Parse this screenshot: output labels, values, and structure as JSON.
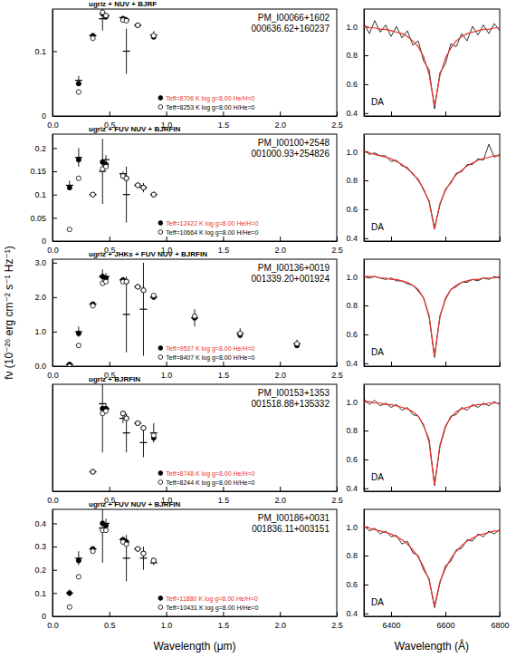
{
  "chart_data": [
    {
      "type": "scatter",
      "title": "ugriz + NUV + BJRF",
      "annotations": [
        "PM_I00066+1602",
        "000636.62+160237"
      ],
      "ylabel": "fν (10⁻²⁶ erg cm⁻² s⁻¹ Hz⁻¹)",
      "x": [
        0.23,
        0.355,
        0.44,
        0.47,
        0.62,
        0.65,
        0.75,
        0.89
      ],
      "xlim": [
        0,
        2.5
      ],
      "xticks": [
        {
          "value": 0,
          "label": "0.0"
        },
        0.5,
        {
          "value": 1,
          "label": "1.0"
        },
        1.5,
        {
          "value": 2,
          "label": "2.0"
        },
        2.5
      ],
      "ylim": [
        0,
        0.165
      ],
      "yticks": [
        0,
        0.1
      ],
      "legend": "lower center",
      "series": [
        {
          "marker": "errorbar",
          "color": "#000000",
          "values": [
            0.055,
            0.124,
            0.15,
            0.155,
            0.152,
            0.1,
            0.14,
            0.125
          ],
          "errors": [
            0.007,
            0.003,
            0.018,
            0.004,
            0.003,
            0.035,
            0.003,
            0.006
          ]
        },
        {
          "name": "Teff=8706 K  log g=8.00  He/H=0",
          "marker": "filled",
          "color": "#000000",
          "values": [
            0.05,
            0.124,
            0.158,
            0.153,
            0.15,
            0.148,
            0.14,
            0.122
          ]
        },
        {
          "name": "Teff=8253 K  log g=8.00  H/He=0",
          "marker": "open",
          "color": "#000000",
          "values": [
            0.037,
            0.12,
            0.16,
            0.155,
            0.148,
            0.147,
            0.14,
            0.124
          ]
        }
      ]
    },
    {
      "type": "line",
      "annotations": [
        "DA"
      ],
      "x": [
        6300,
        6320,
        6340,
        6360,
        6380,
        6400,
        6420,
        6440,
        6460,
        6480,
        6500,
        6520,
        6540,
        6560,
        6580,
        6600,
        6620,
        6640,
        6660,
        6680,
        6700,
        6720,
        6740,
        6760,
        6780,
        6800
      ],
      "xlim": [
        6300,
        6800
      ],
      "xticks": [
        6400,
        6600,
        6800
      ],
      "ylim": [
        0.38,
        1.12
      ],
      "yticks": [
        0.4,
        0.6,
        0.8,
        {
          "value": 1,
          "label": "1.0"
        }
      ],
      "tick_labels": "y",
      "series": [
        {
          "color": "#000000",
          "values": [
            1.02,
            0.95,
            1.04,
            0.96,
            1.01,
            0.93,
            1.0,
            0.92,
            0.97,
            0.87,
            0.9,
            0.76,
            0.7,
            0.43,
            0.68,
            0.74,
            0.88,
            0.86,
            0.95,
            0.9,
            1.0,
            0.94,
            1.01,
            0.95,
            1.02,
            0.97
          ]
        },
        {
          "color": "#e8322a",
          "values": [
            1.0,
            0.99,
            0.99,
            0.98,
            0.98,
            0.97,
            0.96,
            0.95,
            0.93,
            0.9,
            0.86,
            0.79,
            0.67,
            0.45,
            0.66,
            0.78,
            0.85,
            0.9,
            0.93,
            0.95,
            0.96,
            0.97,
            0.98,
            0.98,
            0.99,
            0.99
          ]
        }
      ]
    },
    {
      "type": "scatter",
      "title": "ugriz + FUV NUV + BJRFIN",
      "annotations": [
        "PM_I00100+2548",
        "001000.93+254826"
      ],
      "x": [
        0.15,
        0.23,
        0.355,
        0.44,
        0.47,
        0.62,
        0.65,
        0.75,
        0.8,
        0.89
      ],
      "xlim": [
        0,
        2.5
      ],
      "xticks": [
        {
          "value": 0,
          "label": "0.0"
        },
        0.5,
        {
          "value": 1,
          "label": "1.0"
        },
        1.5,
        {
          "value": 2,
          "label": "2.0"
        },
        2.5
      ],
      "ylim": [
        0,
        0.23
      ],
      "yticks": [
        0,
        0.05,
        0.1,
        0.15,
        0.2
      ],
      "legend": "lower center",
      "series": [
        {
          "marker": "errorbar",
          "color": "#000000",
          "values": [
            0.12,
            0.18,
            0.1,
            0.15,
            0.175,
            0.145,
            0.1,
            0.12,
            0.115,
            0.1
          ],
          "errors": [
            0.01,
            0.02,
            0.004,
            0.07,
            0.01,
            0.005,
            0.06,
            0.005,
            0.01,
            0.006
          ]
        },
        {
          "name": "Teff=12422 K  log g=8.00  He/H=0",
          "marker": "filled",
          "color": "#000000",
          "values": [
            0.115,
            0.175,
            0.1,
            0.17,
            0.165,
            0.14,
            0.135,
            0.12,
            0.115,
            0.1
          ]
        },
        {
          "name": "Teff=10664 K  log g=8.00  H/He=0",
          "marker": "open",
          "color": "#000000",
          "values": [
            0.025,
            0.135,
            0.1,
            0.155,
            0.16,
            0.14,
            0.135,
            0.12,
            0.115,
            0.1
          ]
        }
      ]
    },
    {
      "type": "line",
      "annotations": [
        "DA"
      ],
      "x": [
        6300,
        6320,
        6340,
        6360,
        6380,
        6400,
        6420,
        6440,
        6460,
        6480,
        6500,
        6520,
        6540,
        6560,
        6580,
        6600,
        6620,
        6640,
        6660,
        6680,
        6700,
        6720,
        6740,
        6760,
        6780,
        6800
      ],
      "xlim": [
        6300,
        6800
      ],
      "xticks": [
        6400,
        6600,
        6800
      ],
      "ylim": [
        0.38,
        1.12
      ],
      "yticks": [
        0.4,
        0.6,
        0.8,
        {
          "value": 1,
          "label": "1.0"
        }
      ],
      "tick_labels": "y",
      "series": [
        {
          "color": "#000000",
          "values": [
            1.01,
            0.98,
            0.99,
            0.97,
            0.97,
            0.93,
            0.94,
            0.9,
            0.89,
            0.84,
            0.81,
            0.73,
            0.66,
            0.47,
            0.63,
            0.74,
            0.78,
            0.85,
            0.86,
            0.91,
            0.91,
            0.95,
            0.94,
            1.05,
            0.96,
            0.98
          ]
        },
        {
          "color": "#e8322a",
          "values": [
            1.0,
            0.99,
            0.98,
            0.97,
            0.96,
            0.95,
            0.93,
            0.91,
            0.88,
            0.85,
            0.8,
            0.74,
            0.65,
            0.46,
            0.64,
            0.73,
            0.79,
            0.84,
            0.87,
            0.9,
            0.92,
            0.94,
            0.95,
            0.96,
            0.97,
            0.97
          ]
        }
      ]
    },
    {
      "type": "scatter",
      "title": "ugriz + JHKs + FUV NUV + BJRFIN",
      "annotations": [
        "PM_I00136+0019",
        "001339.20+001924"
      ],
      "x": [
        0.15,
        0.23,
        0.355,
        0.44,
        0.47,
        0.62,
        0.65,
        0.75,
        0.8,
        0.89,
        1.25,
        1.65,
        2.15
      ],
      "xlim": [
        0,
        2.5
      ],
      "xticks": [
        {
          "value": 0,
          "label": "0.0"
        },
        0.5,
        {
          "value": 1,
          "label": "1.0"
        },
        1.5,
        {
          "value": 2,
          "label": "2.0"
        },
        2.5
      ],
      "ylim": [
        0,
        3.1
      ],
      "yticks": [
        {
          "value": 0,
          "label": "0.0"
        },
        {
          "value": 1,
          "label": "1.0"
        },
        {
          "value": 2,
          "label": "2.0"
        },
        {
          "value": 3,
          "label": "3.0"
        }
      ],
      "legend": "lower center",
      "series": [
        {
          "marker": "errorbar",
          "color": "#000000",
          "values": [
            0.05,
            1.0,
            1.8,
            2.6,
            2.6,
            2.5,
            1.5,
            2.3,
            1.65,
            2.0,
            1.4,
            0.95,
            0.65
          ],
          "errors": [
            0.03,
            0.15,
            0.05,
            0.2,
            0.1,
            0.05,
            1.1,
            0.05,
            1.35,
            0.05,
            0.25,
            0.15,
            0.12
          ]
        },
        {
          "name": "Teff=9537 K  log g=8.00  He/H=0",
          "marker": "filled",
          "color": "#000000",
          "values": [
            0.05,
            0.95,
            1.8,
            2.6,
            2.55,
            2.5,
            2.45,
            2.3,
            2.2,
            2.0,
            1.4,
            0.9,
            0.6
          ]
        },
        {
          "name": "Teff=8407 K  log g=8.00  H/He=0",
          "marker": "open",
          "color": "#000000",
          "values": [
            0.0,
            0.6,
            1.75,
            2.4,
            2.45,
            2.45,
            2.45,
            2.3,
            2.2,
            2.05,
            1.45,
            0.95,
            0.65
          ]
        }
      ]
    },
    {
      "type": "line",
      "annotations": [
        "DA"
      ],
      "x": [
        6300,
        6320,
        6340,
        6360,
        6380,
        6400,
        6420,
        6440,
        6460,
        6480,
        6500,
        6520,
        6540,
        6560,
        6580,
        6600,
        6620,
        6640,
        6660,
        6680,
        6700,
        6720,
        6740,
        6760,
        6780,
        6800
      ],
      "xlim": [
        6300,
        6800
      ],
      "xticks": [
        6400,
        6600,
        6800
      ],
      "ylim": [
        0.38,
        1.12
      ],
      "yticks": [
        0.4,
        0.6,
        0.8,
        {
          "value": 1,
          "label": "1.0"
        }
      ],
      "tick_labels": "y",
      "series": [
        {
          "color": "#000000",
          "values": [
            1.0,
            0.99,
            1.0,
            0.99,
            0.98,
            0.99,
            0.97,
            0.97,
            0.95,
            0.94,
            0.9,
            0.85,
            0.72,
            0.44,
            0.73,
            0.84,
            0.91,
            0.93,
            0.96,
            0.96,
            0.98,
            0.97,
            0.99,
            0.98,
            1.0,
            0.99
          ]
        },
        {
          "color": "#e8322a",
          "values": [
            1.0,
            1.0,
            1.0,
            0.99,
            0.99,
            0.98,
            0.98,
            0.97,
            0.96,
            0.94,
            0.91,
            0.85,
            0.73,
            0.45,
            0.72,
            0.85,
            0.91,
            0.94,
            0.96,
            0.97,
            0.98,
            0.98,
            0.99,
            0.99,
            0.99,
            1.0
          ]
        }
      ]
    },
    {
      "type": "scatter",
      "title": "ugriz + BJRFIN",
      "annotations": [
        "PM_I00153+1353",
        "001518.88+135332"
      ],
      "x": [
        0.355,
        0.44,
        0.47,
        0.62,
        0.65,
        0.75,
        0.8,
        0.89
      ],
      "xlim": [
        0,
        2.5
      ],
      "xticks": [
        {
          "value": 0,
          "label": "0.0"
        },
        0.5,
        {
          "value": 1,
          "label": "1.0"
        },
        1.5,
        {
          "value": 2,
          "label": "2.0"
        },
        2.5
      ],
      "ylim": [
        0.28,
        0.5
      ],
      "yticks": [],
      "tick_labels": "x",
      "legend": "lower center",
      "series": [
        {
          "marker": "errorbar",
          "color": "#000000",
          "values": [
            0.32,
            0.46,
            0.45,
            0.43,
            0.4,
            0.42,
            0.38,
            0.4
          ],
          "errors": [
            0.005,
            0.1,
            0.01,
            0.01,
            0.04,
            0.005,
            0.03,
            0.02
          ]
        },
        {
          "name": "Teff=8748 K  log g=8.00  He/H=0",
          "marker": "filled",
          "color": "#000000",
          "values": [
            0.32,
            0.45,
            0.45,
            0.44,
            0.43,
            0.42,
            0.41,
            0.39
          ]
        },
        {
          "name": "Teff=8244 K  log g=8.00  H/He=0",
          "marker": "open",
          "color": "#000000",
          "values": [
            0.32,
            0.44,
            0.445,
            0.44,
            0.43,
            0.42,
            0.41,
            0.395
          ]
        }
      ]
    },
    {
      "type": "line",
      "annotations": [
        "DA"
      ],
      "x": [
        6300,
        6320,
        6340,
        6360,
        6380,
        6400,
        6420,
        6440,
        6460,
        6480,
        6500,
        6520,
        6540,
        6560,
        6580,
        6600,
        6620,
        6640,
        6660,
        6680,
        6700,
        6720,
        6740,
        6760,
        6780,
        6800
      ],
      "xlim": [
        6300,
        6800
      ],
      "xticks": [
        6400,
        6600,
        6800
      ],
      "ylim": [
        0.38,
        1.12
      ],
      "yticks": [
        0.4,
        0.6,
        0.8,
        {
          "value": 1,
          "label": "1.0"
        }
      ],
      "tick_labels": "y",
      "series": [
        {
          "color": "#000000",
          "values": [
            1.02,
            0.98,
            1.01,
            0.97,
            0.99,
            0.96,
            0.98,
            0.94,
            0.96,
            0.91,
            0.9,
            0.83,
            0.74,
            0.42,
            0.69,
            0.82,
            0.9,
            0.91,
            0.96,
            0.94,
            0.98,
            0.96,
            0.99,
            0.97,
            1.0,
            0.98
          ]
        },
        {
          "color": "#e8322a",
          "values": [
            1.0,
            1.0,
            0.99,
            0.99,
            0.98,
            0.98,
            0.97,
            0.96,
            0.95,
            0.93,
            0.9,
            0.84,
            0.72,
            0.42,
            0.7,
            0.83,
            0.89,
            0.93,
            0.95,
            0.96,
            0.97,
            0.98,
            0.98,
            0.99,
            0.99,
            0.99
          ]
        }
      ]
    },
    {
      "type": "scatter",
      "title": "ugriz + FUV NUV + BJRFIN",
      "annotations": [
        "PM_I00186+0031",
        "001836.11+003151"
      ],
      "xlabel": "Wavelength (μm)",
      "x": [
        0.15,
        0.23,
        0.355,
        0.44,
        0.47,
        0.62,
        0.65,
        0.75,
        0.8,
        0.89
      ],
      "xlim": [
        0,
        2.5
      ],
      "xticks": [
        {
          "value": 0,
          "label": "0.0"
        },
        0.5,
        {
          "value": 1,
          "label": "1.0"
        },
        1.5,
        {
          "value": 2,
          "label": "2.0"
        },
        2.5
      ],
      "ylim": [
        0,
        0.46
      ],
      "yticks": [
        0,
        0.1,
        0.2,
        0.3,
        0.4
      ],
      "legend": "lower center",
      "series": [
        {
          "marker": "errorbar",
          "color": "#000000",
          "values": [
            0.1,
            0.25,
            0.29,
            0.38,
            0.4,
            0.33,
            0.25,
            0.29,
            0.25,
            0.23
          ],
          "errors": [
            0.015,
            0.03,
            0.01,
            0.15,
            0.02,
            0.01,
            0.1,
            0.01,
            0.05,
            0.01
          ]
        },
        {
          "name": "Teff=11880 K  log g=8.00  He/H=0",
          "marker": "filled",
          "color": "#000000",
          "values": [
            0.1,
            0.24,
            0.29,
            0.4,
            0.39,
            0.33,
            0.32,
            0.29,
            0.27,
            0.24
          ]
        },
        {
          "name": "Teff=10431 K  log g=8.00  H/He=0",
          "marker": "open",
          "color": "#000000",
          "values": [
            0.04,
            0.17,
            0.28,
            0.37,
            0.37,
            0.32,
            0.31,
            0.29,
            0.27,
            0.24
          ]
        }
      ]
    },
    {
      "type": "line",
      "annotations": [
        "DA"
      ],
      "xlabel": "Wavelength (Å)",
      "x": [
        6300,
        6320,
        6340,
        6360,
        6380,
        6400,
        6420,
        6440,
        6460,
        6480,
        6500,
        6520,
        6540,
        6560,
        6580,
        6600,
        6620,
        6640,
        6660,
        6680,
        6700,
        6720,
        6740,
        6760,
        6780,
        6800
      ],
      "xlim": [
        6300,
        6800
      ],
      "xticks": [
        6400,
        6600,
        6800
      ],
      "ylim": [
        0.38,
        1.12
      ],
      "yticks": [
        0.4,
        0.6,
        0.8,
        {
          "value": 1,
          "label": "1.0"
        }
      ],
      "tick_labels": true,
      "series": [
        {
          "color": "#000000",
          "values": [
            1.01,
            0.97,
            0.99,
            0.95,
            0.97,
            0.93,
            0.94,
            0.88,
            0.9,
            0.82,
            0.8,
            0.7,
            0.64,
            0.44,
            0.61,
            0.73,
            0.76,
            0.84,
            0.85,
            0.91,
            0.9,
            0.95,
            0.93,
            0.97,
            0.95,
            0.98
          ]
        },
        {
          "color": "#e8322a",
          "values": [
            1.0,
            0.99,
            0.98,
            0.97,
            0.96,
            0.95,
            0.93,
            0.91,
            0.88,
            0.84,
            0.79,
            0.72,
            0.63,
            0.45,
            0.62,
            0.71,
            0.78,
            0.83,
            0.87,
            0.9,
            0.92,
            0.94,
            0.95,
            0.96,
            0.97,
            0.97
          ]
        }
      ]
    }
  ]
}
